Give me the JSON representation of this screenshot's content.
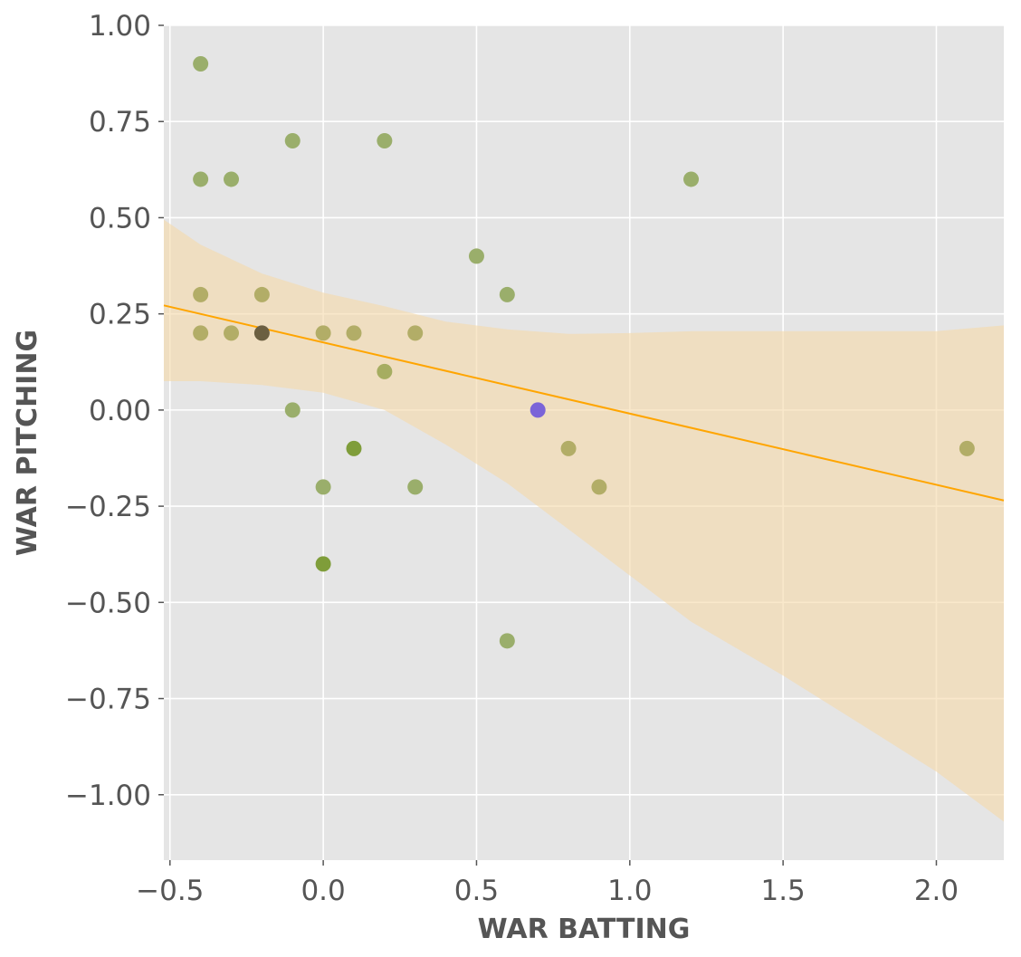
{
  "chart_data": {
    "type": "scatter",
    "xlabel": "WAR BATTING",
    "ylabel": "WAR PITCHING",
    "xlim": [
      -0.52,
      2.22
    ],
    "ylim": [
      -1.17,
      1.0
    ],
    "x_ticks": [
      -0.5,
      0.0,
      0.5,
      1.0,
      1.5,
      2.0
    ],
    "x_tick_labels": [
      "−0.5",
      "0.0",
      "0.5",
      "1.0",
      "1.5",
      "2.0"
    ],
    "y_ticks": [
      1.0,
      0.75,
      0.5,
      0.25,
      0.0,
      -0.25,
      -0.5,
      -0.75,
      -1.0
    ],
    "y_tick_labels": [
      "1.00",
      "0.75",
      "0.50",
      "0.25",
      "0.00",
      "−0.25",
      "−0.50",
      "−0.75",
      "−1.00"
    ],
    "grid": true,
    "legend": "none",
    "colors": {
      "background": "#e5e5e5",
      "grid": "#ffffff",
      "regression_line": "#ffa500",
      "confidence_band": "#f5d9a8",
      "axis_text": "#555555"
    },
    "points": [
      {
        "x": -0.4,
        "y": 0.9,
        "color": "#9aae6b"
      },
      {
        "x": -0.4,
        "y": 0.6,
        "color": "#9aae6b"
      },
      {
        "x": -0.3,
        "y": 0.6,
        "color": "#9aae6b"
      },
      {
        "x": -0.1,
        "y": 0.7,
        "color": "#9aae6b"
      },
      {
        "x": 0.2,
        "y": 0.7,
        "color": "#9aae6b"
      },
      {
        "x": 1.2,
        "y": 0.6,
        "color": "#9aae6b"
      },
      {
        "x": 0.5,
        "y": 0.4,
        "color": "#9aae6b"
      },
      {
        "x": 0.6,
        "y": 0.3,
        "color": "#9aae6b"
      },
      {
        "x": -0.4,
        "y": 0.3,
        "color": "#b2ad67"
      },
      {
        "x": -0.2,
        "y": 0.3,
        "color": "#b2ad67"
      },
      {
        "x": -0.4,
        "y": 0.2,
        "color": "#b2ad67"
      },
      {
        "x": -0.3,
        "y": 0.2,
        "color": "#b2ad67"
      },
      {
        "x": -0.2,
        "y": 0.2,
        "color": "#6b5f41"
      },
      {
        "x": 0.0,
        "y": 0.2,
        "color": "#b2ad67"
      },
      {
        "x": 0.1,
        "y": 0.2,
        "color": "#b2ad67"
      },
      {
        "x": 0.3,
        "y": 0.2,
        "color": "#b2ad67"
      },
      {
        "x": 0.2,
        "y": 0.1,
        "color": "#a6ad61"
      },
      {
        "x": -0.1,
        "y": 0.0,
        "color": "#9aae6b"
      },
      {
        "x": 0.7,
        "y": 0.0,
        "color": "#7b64d8"
      },
      {
        "x": 0.1,
        "y": -0.1,
        "color": "#7f9d3a"
      },
      {
        "x": 0.8,
        "y": -0.1,
        "color": "#b2ad67"
      },
      {
        "x": 2.1,
        "y": -0.1,
        "color": "#b2ad67"
      },
      {
        "x": 0.0,
        "y": -0.2,
        "color": "#9aae6b"
      },
      {
        "x": 0.3,
        "y": -0.2,
        "color": "#9aae6b"
      },
      {
        "x": 0.9,
        "y": -0.2,
        "color": "#b2ad67"
      },
      {
        "x": 0.0,
        "y": -0.4,
        "color": "#7f9d3a"
      },
      {
        "x": 0.6,
        "y": -0.6,
        "color": "#9aae6b"
      }
    ],
    "regression": {
      "x": [
        -0.52,
        2.22
      ],
      "y": [
        0.272,
        -0.235
      ]
    },
    "confidence_band": {
      "x": [
        -0.52,
        -0.4,
        -0.2,
        0.0,
        0.2,
        0.4,
        0.6,
        0.8,
        1.0,
        1.2,
        1.5,
        1.8,
        2.0,
        2.22
      ],
      "upper": [
        0.495,
        0.43,
        0.355,
        0.305,
        0.27,
        0.23,
        0.21,
        0.198,
        0.2,
        0.205,
        0.205,
        0.205,
        0.205,
        0.22
      ],
      "lower": [
        0.075,
        0.075,
        0.065,
        0.045,
        0.0,
        -0.09,
        -0.19,
        -0.31,
        -0.43,
        -0.55,
        -0.69,
        -0.84,
        -0.94,
        -1.07
      ]
    }
  }
}
